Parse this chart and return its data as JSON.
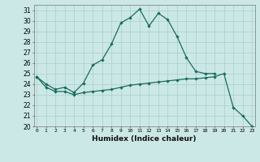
{
  "xlabel": "Humidex (Indice chaleur)",
  "bg_color": "#cce8e6",
  "grid_color": "#aad4d0",
  "line_color": "#1a6b5e",
  "x_values": [
    0,
    1,
    2,
    3,
    4,
    5,
    6,
    7,
    8,
    9,
    10,
    11,
    12,
    13,
    14,
    15,
    16,
    17,
    18,
    19,
    20,
    21,
    22,
    23
  ],
  "line1": [
    24.7,
    24.0,
    23.5,
    23.7,
    23.2,
    24.1,
    25.8,
    26.3,
    27.8,
    29.8,
    30.3,
    31.1,
    29.5,
    30.7,
    30.1,
    28.5,
    26.5,
    25.2,
    25.0,
    25.0,
    null,
    null,
    null,
    null
  ],
  "line2": [
    24.7,
    23.7,
    23.3,
    23.3,
    23.0,
    23.2,
    23.3,
    23.4,
    23.5,
    23.7,
    23.9,
    24.0,
    24.1,
    24.2,
    24.3,
    24.4,
    24.5,
    24.5,
    24.6,
    24.7,
    25.0,
    21.8,
    21.0,
    20.0
  ],
  "ylim": [
    20,
    31.5
  ],
  "yticks": [
    20,
    21,
    22,
    23,
    24,
    25,
    26,
    27,
    28,
    29,
    30,
    31
  ],
  "xlim": [
    -0.3,
    23.3
  ]
}
